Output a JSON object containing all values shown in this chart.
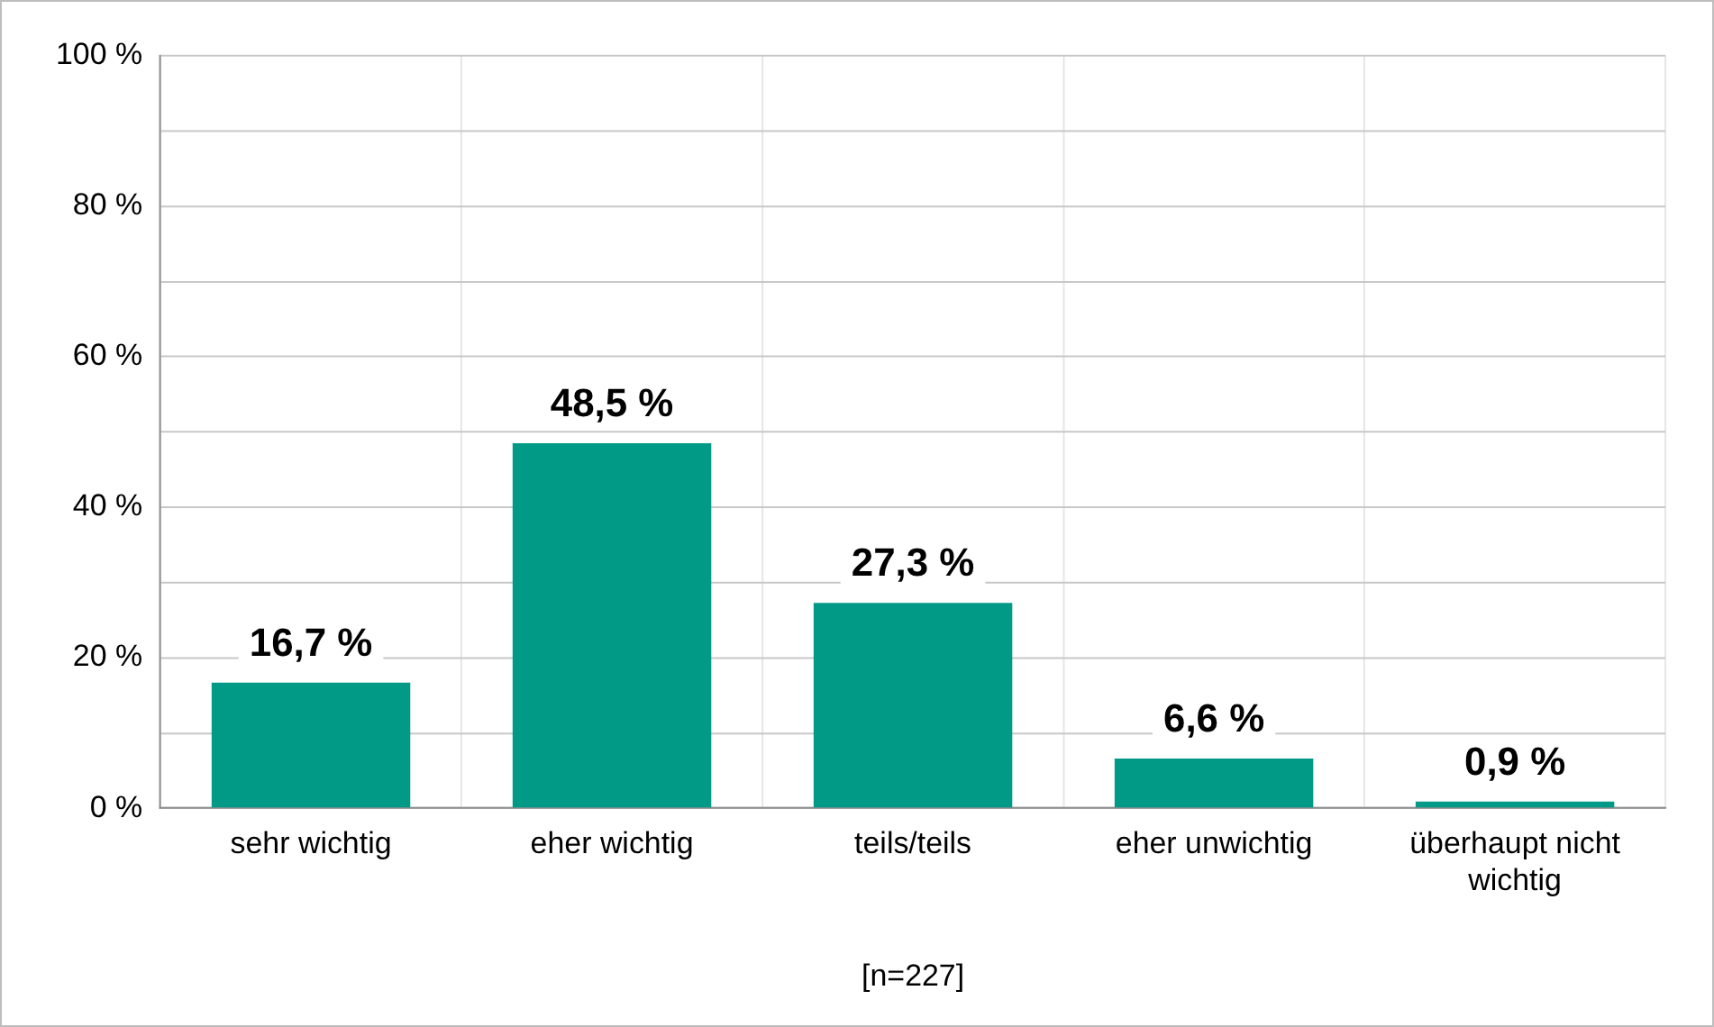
{
  "chart_data": {
    "type": "bar",
    "categories": [
      "sehr wichtig",
      "eher wichtig",
      "teils/teils",
      "eher unwichtig",
      "überhaupt nicht wichtig"
    ],
    "values": [
      16.7,
      48.5,
      27.3,
      6.6,
      0.9
    ],
    "value_labels": [
      "16,7 %",
      "48,5 %",
      "27,3 %",
      "6,6 %",
      "0,9 %"
    ],
    "color": "#009a87",
    "ylim": [
      0,
      100
    ],
    "yticks": [
      {
        "value": 0,
        "label": "0 %"
      },
      {
        "value": 10,
        "label": null
      },
      {
        "value": 20,
        "label": "20 %"
      },
      {
        "value": 30,
        "label": null
      },
      {
        "value": 40,
        "label": "40 %"
      },
      {
        "value": 50,
        "label": null
      },
      {
        "value": 60,
        "label": "60 %"
      },
      {
        "value": 70,
        "label": null
      },
      {
        "value": 80,
        "label": "80 %"
      },
      {
        "value": 90,
        "label": null
      },
      {
        "value": 100,
        "label": "100 %"
      }
    ],
    "grid": true,
    "annotations": [
      "[n=227]"
    ]
  }
}
